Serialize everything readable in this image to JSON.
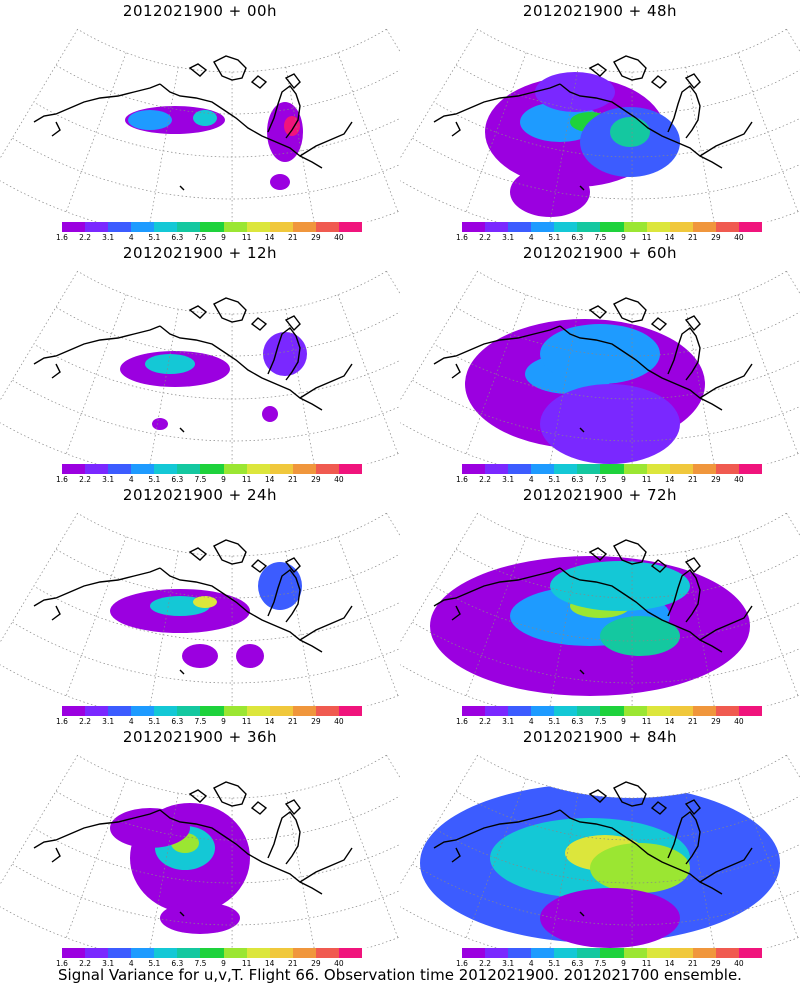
{
  "panels": [
    {
      "title": "2012021900 + 00h"
    },
    {
      "title": "2012021900 + 48h"
    },
    {
      "title": "2012021900 + 12h"
    },
    {
      "title": "2012021900 + 60h"
    },
    {
      "title": "2012021900 + 24h"
    },
    {
      "title": "2012021900 + 72h"
    },
    {
      "title": "2012021900 + 36h"
    },
    {
      "title": "2012021900 + 84h"
    }
  ],
  "colorbar": {
    "labels": [
      "1.6",
      "2.2",
      "3.1",
      "4",
      "5.1",
      "6.3",
      "7.5",
      "9",
      "11",
      "14",
      "21",
      "29",
      "40"
    ],
    "colors": [
      "#9b00e0",
      "#7a28ff",
      "#3c5cff",
      "#1e9bff",
      "#14c8d6",
      "#14c8a0",
      "#1ed23c",
      "#9be632",
      "#dce63c",
      "#f0c83c",
      "#f0963c",
      "#f05a50",
      "#f0147c"
    ]
  },
  "footer": "Signal Variance for u,v,T. Flight 66. Observation time 2012021900. 2012021700 ensemble."
}
